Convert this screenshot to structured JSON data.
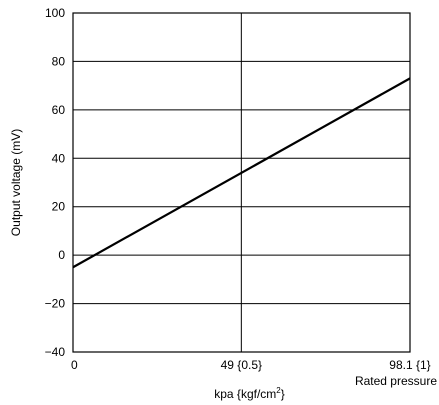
{
  "chart_data": {
    "type": "line",
    "title": "",
    "xlabel": "kpa {kgf/cm",
    "xlabel_superscript": "2",
    "xlabel_suffix": "}",
    "ylabel": "Output voltage (mV)",
    "xlim": [
      0,
      98.1
    ],
    "ylim": [
      -40,
      100
    ],
    "grid": true,
    "x_ticks": [
      {
        "value": 0,
        "label": "0"
      },
      {
        "value": 49,
        "label": "49 {0.5}"
      },
      {
        "value": 98.1,
        "label": "98.1 {1}"
      }
    ],
    "x_tick_note": "Rated pressure",
    "y_ticks": [
      {
        "value": 100,
        "label": "100"
      },
      {
        "value": 80,
        "label": "80"
      },
      {
        "value": 60,
        "label": "60"
      },
      {
        "value": 40,
        "label": "40"
      },
      {
        "value": 20,
        "label": "20"
      },
      {
        "value": 0,
        "label": "0"
      },
      {
        "value": -20,
        "label": "−20"
      },
      {
        "value": -40,
        "label": "−40"
      }
    ],
    "series": [
      {
        "x": [
          0,
          98.1
        ],
        "values": [
          -5,
          73
        ]
      }
    ]
  }
}
